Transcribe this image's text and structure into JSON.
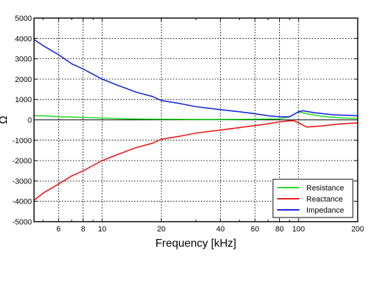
{
  "chart_data": {
    "type": "line",
    "title": "",
    "xlabel": "Frequency [kHz]",
    "ylabel": "Ω",
    "x_scale": "log",
    "xlim": [
      4.5,
      200
    ],
    "ylim": [
      -5000,
      5000
    ],
    "grid": true,
    "legend_position": "bottom-right",
    "x_ticks": [
      6,
      8,
      10,
      20,
      40,
      60,
      80,
      100,
      200
    ],
    "x_tick_labels": [
      "6",
      "8",
      "10",
      "20",
      "40",
      "60",
      "80",
      "100",
      "200"
    ],
    "y_ticks": [
      -5000,
      -4000,
      -3000,
      -2000,
      -1000,
      0,
      1000,
      2000,
      3000,
      4000,
      5000
    ],
    "y_tick_labels": [
      "-5000",
      "-4000",
      "-3000",
      "-2000",
      "-1000",
      "0",
      "1000",
      "2000",
      "3000",
      "4000",
      "5000"
    ],
    "series": [
      {
        "name": "Resistance",
        "color": "#22dd22",
        "x": [
          4.5,
          5,
          6,
          7,
          8,
          10,
          15,
          20,
          30,
          40,
          60,
          80,
          90,
          100,
          110,
          130,
          160,
          200
        ],
        "y": [
          200,
          200,
          150,
          140,
          120,
          90,
          40,
          30,
          20,
          20,
          30,
          50,
          150,
          400,
          300,
          180,
          100,
          70
        ]
      },
      {
        "name": "Reactance",
        "color": "#ee1111",
        "x": [
          4.5,
          5,
          6,
          7,
          8,
          10,
          12,
          15,
          18,
          20,
          25,
          30,
          40,
          50,
          60,
          70,
          80,
          90,
          95,
          100,
          110,
          130,
          160,
          200
        ],
        "y": [
          -3950,
          -3600,
          -3150,
          -2750,
          -2500,
          -2000,
          -1700,
          -1350,
          -1150,
          -950,
          -800,
          -650,
          -500,
          -380,
          -280,
          -190,
          -100,
          -40,
          -50,
          -150,
          -350,
          -300,
          -200,
          -150
        ]
      },
      {
        "name": "Impedance",
        "color": "#1122dd",
        "x": [
          4.5,
          5,
          6,
          7,
          8,
          10,
          12,
          15,
          18,
          20,
          25,
          30,
          40,
          50,
          60,
          70,
          80,
          90,
          100,
          105,
          120,
          150,
          200
        ],
        "y": [
          3950,
          3650,
          3200,
          2750,
          2500,
          2000,
          1700,
          1350,
          1150,
          950,
          800,
          650,
          500,
          400,
          300,
          200,
          150,
          150,
          400,
          450,
          350,
          250,
          200
        ]
      }
    ]
  }
}
